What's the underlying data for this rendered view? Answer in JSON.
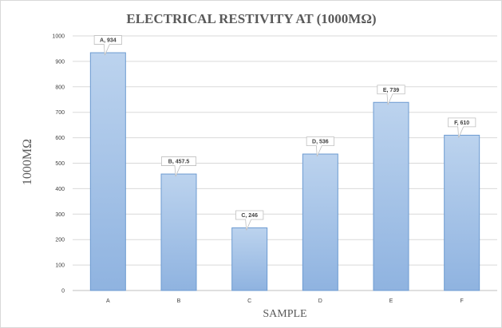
{
  "chart_data": {
    "type": "bar",
    "title": "ELECTRICAL RESTIVITY AT (1000MΩ)",
    "xlabel": "SAMPLE",
    "ylabel": "1000MΩ",
    "categories": [
      "A",
      "B",
      "C",
      "D",
      "E",
      "F"
    ],
    "values": [
      934,
      457.5,
      246,
      536,
      739,
      610
    ],
    "data_labels": [
      "A, 934",
      "B, 457.5",
      "C, 246",
      "D, 536",
      "E, 739",
      "F, 610"
    ],
    "ylim": [
      0,
      1000
    ],
    "yticks": [
      0,
      100,
      200,
      300,
      400,
      500,
      600,
      700,
      800,
      900,
      1000
    ],
    "grid": true,
    "legend": "none",
    "colors": {
      "bar_top": "#bcd3ee",
      "bar_bottom": "#8fb3e0",
      "bar_border": "#6d9bd1",
      "grid": "#d9d9d9",
      "text": "#595959"
    }
  }
}
